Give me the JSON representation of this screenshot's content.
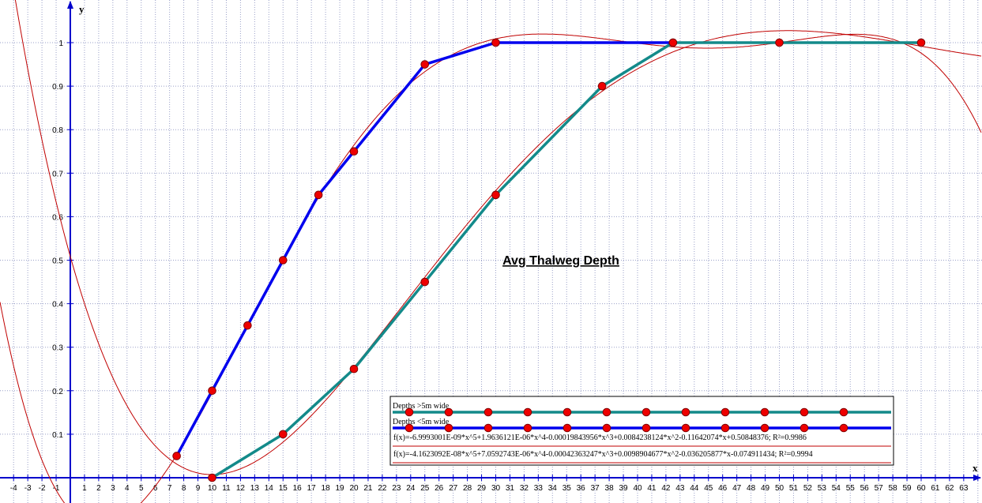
{
  "chart_data": {
    "type": "line",
    "title": "Avg Thalweg Depth",
    "xlabel": "x",
    "ylabel": "y",
    "xlim": [
      -5,
      64
    ],
    "ylim": [
      -0.01,
      1.08
    ],
    "x_ticks": [
      -4,
      -3,
      -2,
      -1,
      1,
      2,
      3,
      4,
      5,
      6,
      7,
      8,
      9,
      10,
      11,
      12,
      13,
      14,
      15,
      16,
      17,
      18,
      19,
      20,
      21,
      22,
      23,
      24,
      25,
      26,
      27,
      28,
      29,
      30,
      31,
      32,
      33,
      34,
      35,
      36,
      37,
      38,
      39,
      40,
      41,
      42,
      43,
      44,
      45,
      46,
      47,
      48,
      49,
      50,
      51,
      52,
      53,
      54,
      55,
      56,
      57,
      58,
      59,
      60,
      61,
      62,
      63
    ],
    "y_ticks": [
      "0.1",
      "0.2",
      "0.3",
      "0.4",
      "0.5",
      "0.6",
      "0.7",
      "0.8",
      "0.9",
      "1"
    ],
    "grid": true,
    "series": [
      {
        "name": "Depths >5m wide",
        "color": "#138a8a",
        "x": [
          10,
          15,
          20,
          25,
          30,
          37.5,
          42.5,
          50,
          60
        ],
        "y": [
          0,
          0.1,
          0.25,
          0.45,
          0.65,
          0.9,
          1,
          1,
          1
        ]
      },
      {
        "name": "Depths <5m wide",
        "color": "#0000ee",
        "x": [
          7.5,
          10,
          12.5,
          15,
          17.5,
          20,
          25,
          30,
          42.5
        ],
        "y": [
          0.05,
          0.2,
          0.35,
          0.5,
          0.65,
          0.75,
          0.95,
          1,
          1
        ]
      }
    ],
    "fits": [
      {
        "label": "f(x)=-6.9993001E-09*x^5+1.9636121E-06*x^4-0.00019843956*x^3+0.0084238124*x^2-0.11642074*x+0.50848376; R²=0.9986",
        "coefficients": [
          -6.9993001e-09,
          1.9636121e-06,
          -0.00019843956,
          0.0084238124,
          -0.11642074,
          0.50848376
        ],
        "color": "#c00000"
      },
      {
        "label": "f(x)=-4.1623092E-08*x^5+7.0592743E-06*x^4-0.00042363247*x^3+0.0098904677*x^2-0.036205877*x-0.074911434; R²=0.9994",
        "coefficients": [
          -4.1623092e-08,
          7.0592743e-06,
          -0.00042363247,
          0.0098904677,
          -0.036205877,
          -0.074911434
        ],
        "color": "#c00000"
      }
    ],
    "marker_color": "#ee0000",
    "legend_position": "bottom-right"
  }
}
